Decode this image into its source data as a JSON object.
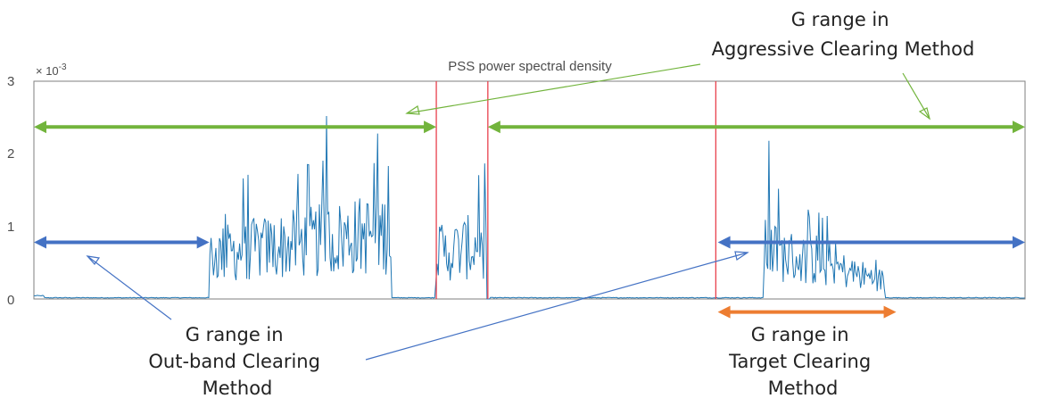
{
  "chart_data": {
    "type": "line",
    "title": "PSS power spectral density",
    "y_exponent_label": "× 10",
    "y_exponent_power": "-3",
    "yticks": [
      "0",
      "1",
      "2",
      "3"
    ],
    "ylim": [
      0,
      3
    ],
    "xlim": [
      0,
      1
    ],
    "grid": false,
    "legend": "none",
    "colors": {
      "signal": "#2077b4",
      "boundary": "#e8414d",
      "aggressive": "#72b43c",
      "outband": "#4472c4",
      "target": "#ed7d31"
    },
    "series": [
      {
        "segment": "left-block",
        "x_range": [
          0.177,
          0.361
        ],
        "level": [
          0.62,
          0.95
        ],
        "peak": 2.52,
        "noise_floor": 0.02
      },
      {
        "segment": "pss-block",
        "x_range": [
          0.405,
          0.456
        ],
        "level": [
          0.62,
          0.78
        ],
        "peak": 1.02,
        "noise_floor": 0.0
      },
      {
        "segment": "right-block",
        "x_range": [
          0.736,
          0.859
        ],
        "level": [
          0.7,
          0.25
        ],
        "peak": 2.18,
        "noise_floor": 0.02
      }
    ],
    "boundaries_x": [
      0.406,
      0.458,
      0.688
    ],
    "ranges": [
      {
        "name": "aggressive",
        "from": 0.0,
        "to": 0.406,
        "y": 2.37
      },
      {
        "name": "aggressive",
        "from": 0.458,
        "to": 1.0,
        "y": 2.37
      },
      {
        "name": "outband",
        "from": 0.0,
        "to": 0.177,
        "y": 0.78
      },
      {
        "name": "outband",
        "from": 0.69,
        "to": 1.0,
        "y": 0.78
      },
      {
        "name": "target",
        "from": 0.69,
        "to": 0.87,
        "y": -0.18
      }
    ]
  },
  "annotations": {
    "aggressive": [
      "G range in",
      "Aggressive Clearing Method"
    ],
    "outband": [
      "G range in",
      "Out-band Clearing",
      "Method"
    ],
    "target": [
      "G range in",
      "Target Clearing",
      "Method"
    ]
  }
}
